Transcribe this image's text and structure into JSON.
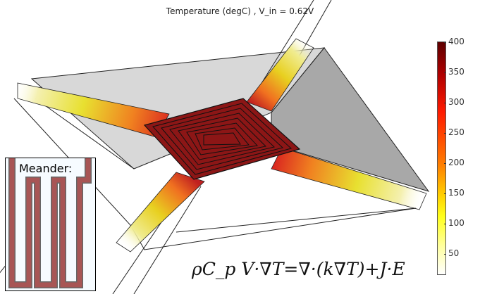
{
  "title": "Temperature (degC) , V_in = 0.62V",
  "colorbar": {
    "ticks": [
      "400",
      "350",
      "300",
      "250",
      "200",
      "150",
      "100",
      "50"
    ],
    "colormap": "heat",
    "colors": [
      "#5e0000",
      "#ff1a00",
      "#ff7a00",
      "#ffff1a",
      "#ffffff"
    ]
  },
  "inset": {
    "label": "Meander:",
    "trace_color": "#a85555"
  },
  "equation": "ρC_p V·∇T=∇·(k∇T)+J·E"
}
